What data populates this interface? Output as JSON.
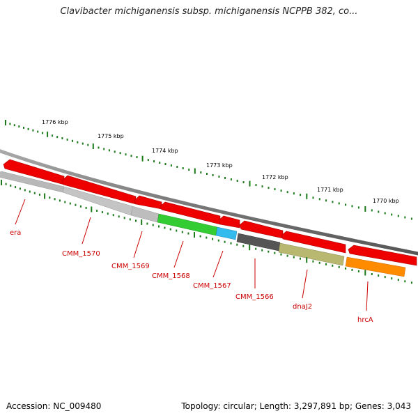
{
  "title": "Clavibacter michiganensis subsp. michiganensis NCPPB 382, co...",
  "footer": {
    "accession": "Accession: NC_009480",
    "summary": "Topology: circular; Length: 3,297,891 bp; Genes: 3,043"
  },
  "ruler_labels": [
    "1776 kbp",
    "1775 kbp",
    "1774 kbp",
    "1773 kbp",
    "1772 kbp",
    "1771 kbp",
    "1770 kbp"
  ],
  "colors": {
    "backbone": "#7a7a7a",
    "cds": "#ee0000",
    "tick": "#1a7a1a",
    "label": "#cc0000",
    "gene_grey": "#b8b8b8",
    "gene_green": "#33cc33",
    "gene_cyan": "#33bbee",
    "gene_dark": "#555555",
    "gene_olive": "#b8b870",
    "gene_orange": "#ff8c00"
  },
  "genes": [
    {
      "label": "era",
      "color": "#b8b8b8"
    },
    {
      "label": "CMM_1570",
      "color": "#b8b8b8"
    },
    {
      "label": "CMM_1569",
      "color": "#b8b8b8"
    },
    {
      "label": "CMM_1568",
      "color": "#33cc33"
    },
    {
      "label": "CMM_1567",
      "color": "#33bbee"
    },
    {
      "label": "CMM_1566",
      "color": "#555555"
    },
    {
      "label": "dnaJ2",
      "color": "#b8b870"
    },
    {
      "label": "hrcA",
      "color": "#ff8c00"
    }
  ]
}
